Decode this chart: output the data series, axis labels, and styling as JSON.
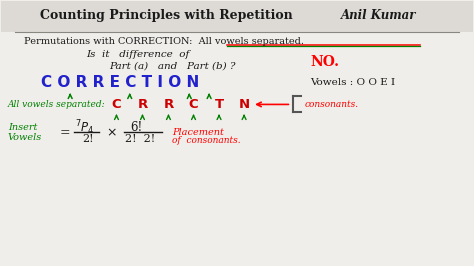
{
  "bg_color": "#d8d5d0",
  "panel_color": "#f0eeea",
  "title": "Counting Principles with Repetition",
  "author": "Anil Kumar",
  "figsize": [
    4.74,
    2.66
  ],
  "dpi": 100,
  "xlim": [
    0,
    10
  ],
  "ylim": [
    0,
    10
  ],
  "title_fs": 9,
  "author_fs": 8.5,
  "body_fs": 7,
  "corr_fs": 10,
  "vowel_indices": [
    1,
    4,
    7,
    8
  ],
  "letter_x": [
    1.05,
    1.47,
    1.89,
    2.31,
    2.73,
    3.15,
    3.57,
    3.99,
    4.41,
    4.83
  ],
  "cons_x": [
    2.45,
    3.0,
    3.55,
    4.08,
    4.62,
    5.15
  ],
  "cons_letters": [
    "C",
    "R",
    "R",
    "C",
    "T",
    "N"
  ]
}
